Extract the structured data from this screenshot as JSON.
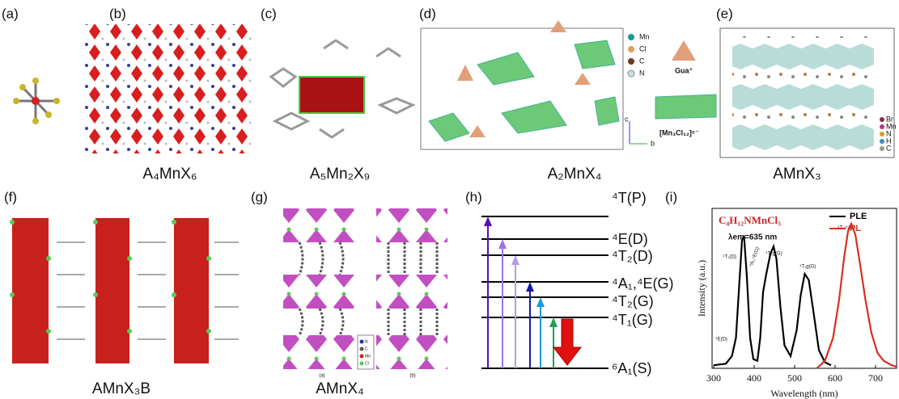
{
  "panel_labels": [
    "(a)",
    "(b)",
    "(c)",
    "(d)",
    "(e)",
    "(f)",
    "(g)",
    "(h)",
    "(i)"
  ],
  "captions": [
    "A₄MnX₆",
    "A₅Mn₂X₉",
    "A₂MnX₄",
    "AMnX₃",
    "AMnX₃B",
    "AMnX₄"
  ],
  "d_legend": [
    "Mn",
    "Cl",
    "C",
    "N",
    "Gua⁺",
    "[Mn₃Cl₁₂]⁶⁻",
    "c",
    "b"
  ],
  "e_legend": [
    "Br",
    "Mn",
    "N",
    "H",
    "C"
  ],
  "g_legend": [
    "N",
    "C",
    "Mn",
    "Cl",
    "(a)",
    "(b)"
  ],
  "energy_levels": [
    "⁴T(P)",
    "⁴E(D)",
    "⁴T₂(D)",
    "⁴A₁,⁴E(G)",
    "⁴T₂(G)",
    "⁴T₁(G)",
    "⁶A₁(S)"
  ],
  "spectrum": {
    "type": "line",
    "title": "C₄H₁₂NMnCl₃",
    "annotation": "λem=635 nm",
    "xlabel": "Wavelength (nm)",
    "ylabel": "Intensity (a.u.)",
    "xlim": [
      296,
      752
    ],
    "xticks": [
      300,
      400,
      500,
      600,
      700
    ],
    "ylim": [
      0,
      1.05
    ],
    "peak_labels": [
      "⁴E(D)",
      "⁴T₂(D)",
      "⁴A₁,⁴E(G)",
      "⁴T₂g(G)",
      "⁴T₁g(G)",
      "⁴T₁-⁶A₁"
    ],
    "series": [
      {
        "name": "PLE",
        "color": "#000000",
        "x": [
          300,
          330,
          345,
          355,
          362,
          370,
          375,
          382,
          390,
          398,
          408,
          415,
          422,
          430,
          440,
          448,
          455,
          465,
          475,
          490,
          505,
          515,
          525,
          535,
          545,
          560,
          575,
          590
        ],
        "values": [
          0.02,
          0.03,
          0.08,
          0.2,
          0.5,
          0.84,
          0.87,
          0.6,
          0.2,
          0.06,
          0.05,
          0.2,
          0.5,
          0.62,
          0.75,
          0.8,
          0.72,
          0.4,
          0.15,
          0.08,
          0.25,
          0.48,
          0.62,
          0.58,
          0.4,
          0.12,
          0.04,
          0.02
        ]
      },
      {
        "name": "PL",
        "color": "#d7301f",
        "x": [
          555,
          575,
          595,
          610,
          622,
          632,
          640,
          650,
          662,
          675,
          690,
          705,
          720,
          740,
          752
        ],
        "values": [
          0.0,
          0.05,
          0.2,
          0.45,
          0.72,
          0.9,
          0.95,
          0.88,
          0.68,
          0.45,
          0.23,
          0.1,
          0.05,
          0.02,
          0.01
        ]
      }
    ]
  }
}
